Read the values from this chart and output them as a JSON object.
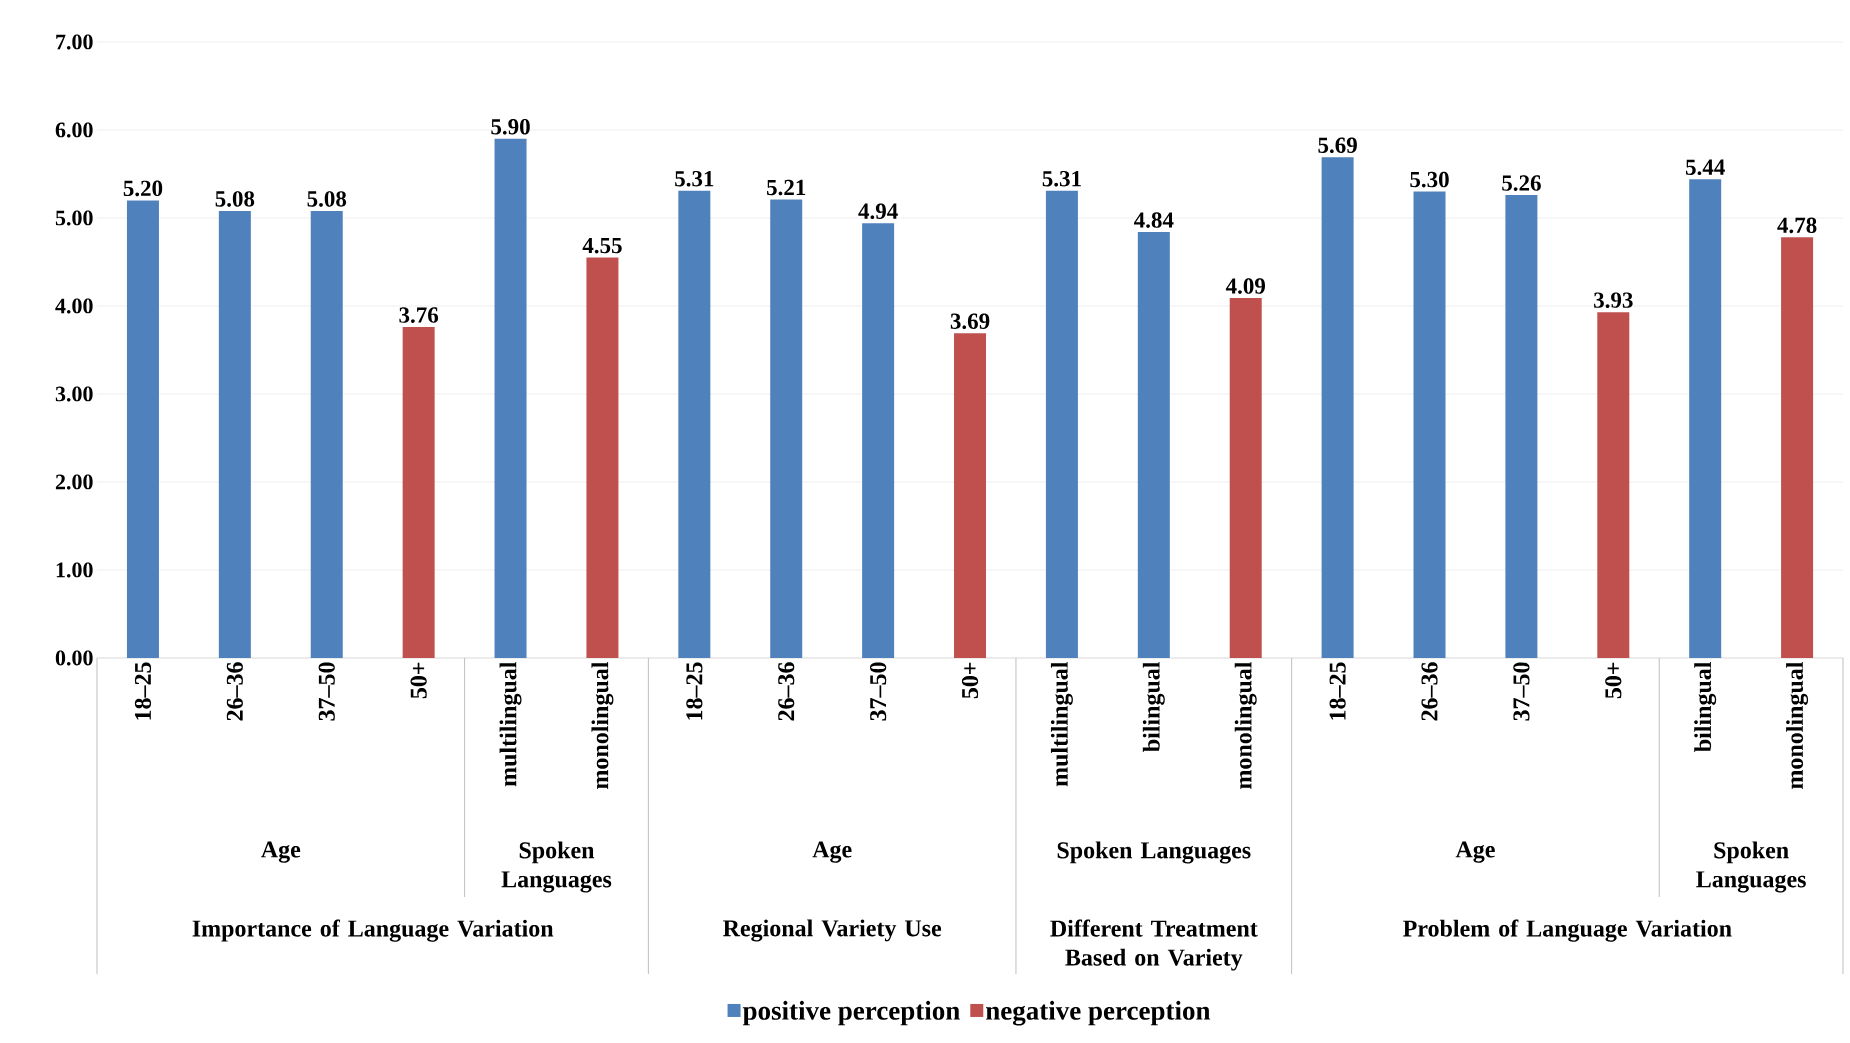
{
  "chart_data": {
    "type": "bar",
    "categories": [
      "18–25",
      "26–36",
      "37–50",
      "50+",
      "multilingual",
      "monolingual",
      "18–25",
      "26–36",
      "37–50",
      "50+",
      "multilingual",
      "bilingual",
      "monolingual",
      "18–25",
      "26–36",
      "37–50",
      "50+",
      "bilingual",
      "monolingual"
    ],
    "series": [
      {
        "name": "positive perception",
        "color": "#4f81bd",
        "values": [
          5.2,
          5.08,
          5.08,
          null,
          5.9,
          null,
          5.31,
          5.21,
          4.94,
          null,
          5.31,
          4.84,
          null,
          5.69,
          5.3,
          5.26,
          null,
          5.44,
          null
        ],
        "value_labels": [
          "5.20",
          "5.08",
          "5.08",
          null,
          "5.90",
          null,
          "5.31",
          "5.21",
          "4.94",
          null,
          "5.31",
          "4.84",
          null,
          "5.69",
          "5.30",
          "5.26",
          null,
          "5.44",
          null
        ]
      },
      {
        "name": "negative perception",
        "color": "#c0504d",
        "values": [
          null,
          null,
          null,
          3.76,
          null,
          4.55,
          null,
          null,
          null,
          3.69,
          null,
          null,
          4.09,
          null,
          null,
          null,
          3.93,
          null,
          4.78
        ],
        "value_labels": [
          null,
          null,
          null,
          "3.76",
          null,
          "4.55",
          null,
          null,
          null,
          "3.69",
          null,
          null,
          "4.09",
          null,
          null,
          null,
          "3.93",
          null,
          "4.78"
        ]
      }
    ],
    "ylim": [
      0,
      7
    ],
    "yticks": [
      {
        "value": 0,
        "label": "0.00"
      },
      {
        "value": 1,
        "label": "1.00"
      },
      {
        "value": 2,
        "label": "2.00"
      },
      {
        "value": 3,
        "label": "3.00"
      },
      {
        "value": 4,
        "label": "4.00"
      },
      {
        "value": 5,
        "label": "5.00"
      },
      {
        "value": 6,
        "label": "6.00"
      },
      {
        "value": 7,
        "label": "7.00"
      }
    ],
    "grid": "y",
    "legend": "bottom",
    "annotations": [
      "Age",
      "Spoken Languages",
      "Age",
      "Spoken Languages",
      "Age",
      "Spoken Languages",
      "Importance of Language Variation",
      "Regional Variety Use",
      "Different Treatment Based on Variety",
      "Problem of Language Variation"
    ]
  }
}
